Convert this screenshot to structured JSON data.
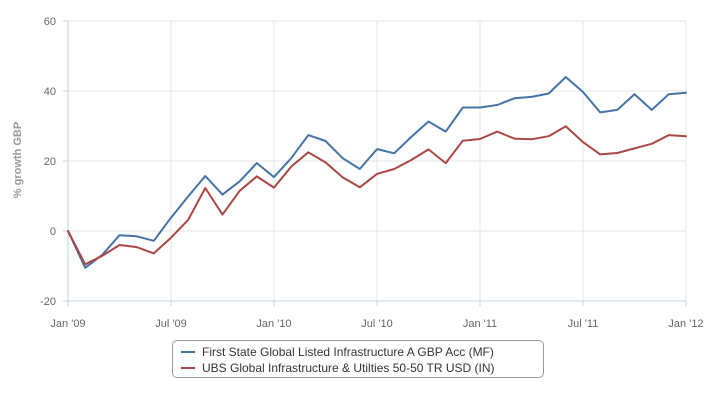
{
  "chart_data": {
    "type": "line",
    "title": "",
    "xlabel": "",
    "ylabel": "% growth GBP",
    "ylim": [
      -20,
      60
    ],
    "y_ticks": [
      "60",
      "40",
      "20",
      "0",
      "-20"
    ],
    "x_ticks": [
      "Jan '09",
      "Jul '09",
      "Jan '10",
      "Jul '10",
      "Jan '11",
      "Jul '11",
      "Jan '12"
    ],
    "x_range": [
      "2009-01",
      "2012-01"
    ],
    "grid": "vertical and horizontal",
    "legend_position": "bottom-center",
    "x": [
      "2009-01",
      "2009-02",
      "2009-03",
      "2009-04",
      "2009-05",
      "2009-06",
      "2009-07",
      "2009-08",
      "2009-09",
      "2009-10",
      "2009-11",
      "2009-12",
      "2010-01",
      "2010-02",
      "2010-03",
      "2010-04",
      "2010-05",
      "2010-06",
      "2010-07",
      "2010-08",
      "2010-09",
      "2010-10",
      "2010-11",
      "2010-12",
      "2011-01",
      "2011-02",
      "2011-03",
      "2011-04",
      "2011-05",
      "2011-06",
      "2011-07",
      "2011-08",
      "2011-09",
      "2011-10",
      "2011-11",
      "2011-12",
      "2012-01"
    ],
    "series": [
      {
        "name": "First State Global Listed Infrastructure A GBP Acc (MF)",
        "color": "#4572a7",
        "values": [
          0.0,
          -10.5,
          -6.8,
          -1.2,
          -1.5,
          -2.8,
          3.8,
          9.9,
          15.7,
          10.4,
          14.2,
          19.4,
          15.4,
          20.8,
          27.4,
          25.7,
          20.8,
          17.7,
          23.4,
          22.2,
          26.9,
          31.3,
          28.4,
          35.3,
          35.3,
          36.0,
          37.9,
          38.3,
          39.3,
          44.0,
          39.7,
          33.9,
          34.6,
          39.1,
          34.6,
          39.1,
          39.5
        ]
      },
      {
        "name": "UBS Global Infrastructure & Utilties 50-50 TR USD (IN)",
        "color": "#aa4643",
        "values": [
          0.0,
          -9.5,
          -7.1,
          -4.0,
          -4.6,
          -6.4,
          -1.9,
          3.2,
          12.3,
          4.7,
          11.5,
          15.6,
          12.4,
          18.4,
          22.5,
          19.6,
          15.3,
          12.5,
          16.3,
          17.7,
          20.3,
          23.3,
          19.4,
          25.8,
          26.3,
          28.4,
          26.4,
          26.2,
          27.1,
          29.9,
          25.4,
          21.9,
          22.3,
          23.6,
          24.9,
          27.4,
          27.1
        ]
      }
    ]
  },
  "colors": {
    "grid": "#e6e6e6",
    "axis": "#c0d0e0",
    "tick_label": "#666666"
  }
}
